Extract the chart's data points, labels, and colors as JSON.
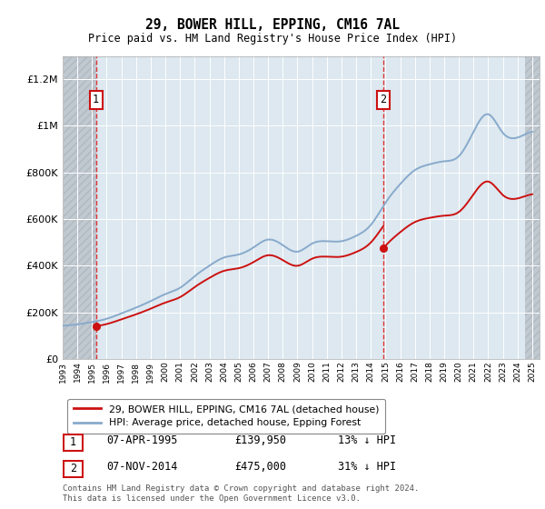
{
  "title": "29, BOWER HILL, EPPING, CM16 7AL",
  "subtitle": "Price paid vs. HM Land Registry's House Price Index (HPI)",
  "ylim": [
    0,
    1300000
  ],
  "yticks": [
    0,
    200000,
    400000,
    600000,
    800000,
    1000000,
    1200000
  ],
  "ytick_labels": [
    "£0",
    "£200K",
    "£400K",
    "£600K",
    "£800K",
    "£1M",
    "£1.2M"
  ],
  "hpi_color": "#88aacc",
  "price_color": "#cc1111",
  "t1_year": 1995.27,
  "t2_year": 2014.85,
  "t1_price": 139950,
  "t2_price": 475000,
  "legend_line1": "29, BOWER HILL, EPPING, CM16 7AL (detached house)",
  "legend_line2": "HPI: Average price, detached house, Epping Forest",
  "table_row1": [
    "1",
    "07-APR-1995",
    "£139,950",
    "13% ↓ HPI"
  ],
  "table_row2": [
    "2",
    "07-NOV-2014",
    "£475,000",
    "31% ↓ HPI"
  ],
  "footnote": "Contains HM Land Registry data © Crown copyright and database right 2024.\nThis data is licensed under the Open Government Licence v3.0.",
  "background_color": "#dde8f0",
  "hatch_color": "#c0c8d0",
  "hpi_years": [
    1993,
    1994,
    1995,
    1996,
    1997,
    1998,
    1999,
    2000,
    2001,
    2002,
    2003,
    2004,
    2005,
    2006,
    2007,
    2008,
    2009,
    2010,
    2011,
    2012,
    2013,
    2014,
    2015,
    2016,
    2017,
    2018,
    2019,
    2020,
    2021,
    2022,
    2023,
    2024,
    2025
  ],
  "hpi_vals": [
    142000,
    148000,
    158000,
    172000,
    195000,
    220000,
    248000,
    278000,
    305000,
    355000,
    400000,
    435000,
    448000,
    478000,
    512000,
    488000,
    460000,
    495000,
    505000,
    505000,
    528000,
    575000,
    670000,
    750000,
    810000,
    835000,
    848000,
    870000,
    975000,
    1050000,
    970000,
    950000,
    975000
  ]
}
